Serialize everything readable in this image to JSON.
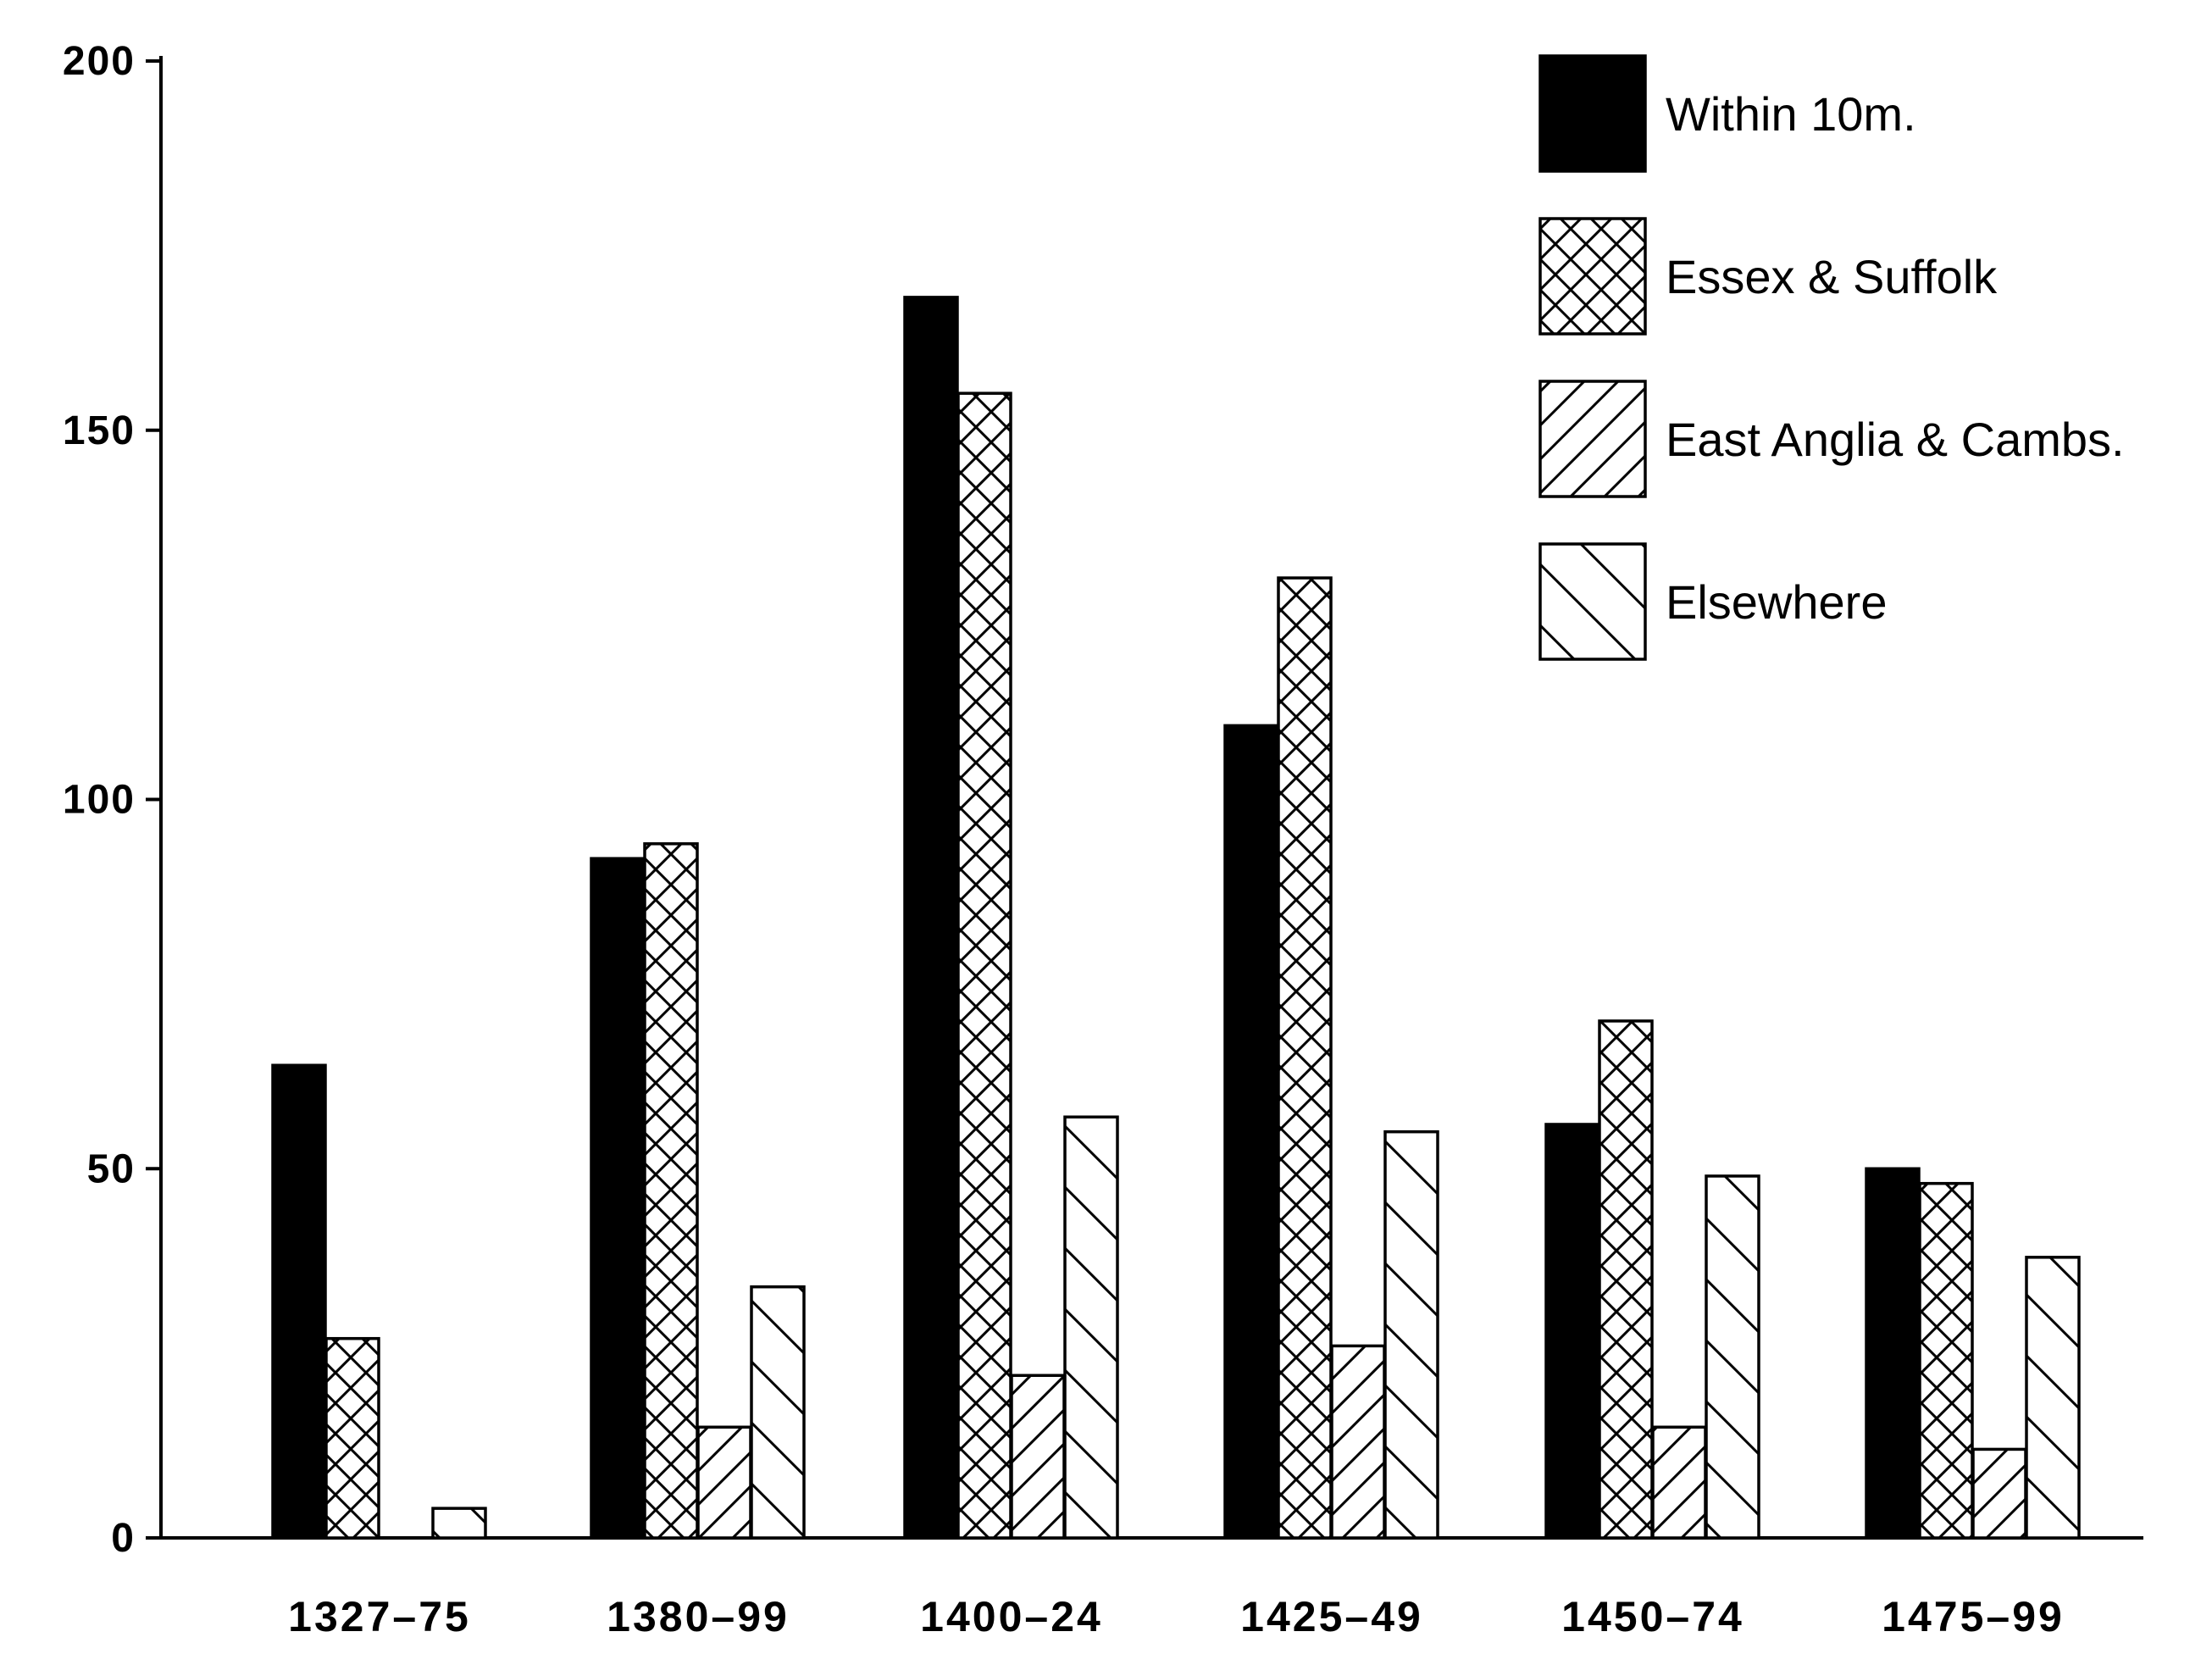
{
  "chart_data": {
    "type": "bar",
    "categories": [
      "1327-75",
      "1380-99",
      "1400-24",
      "1425-49",
      "1450-74",
      "1475-99"
    ],
    "series": [
      {
        "name": "Within 10m.",
        "values": [
          64,
          92,
          168,
          110,
          56,
          50
        ],
        "pattern": "solid"
      },
      {
        "name": "Essex & Suffolk",
        "values": [
          27,
          94,
          155,
          130,
          70,
          48
        ],
        "pattern": "crosshatch"
      },
      {
        "name": "East Anglia & Cambs.",
        "values": [
          0,
          15,
          22,
          26,
          15,
          12
        ],
        "pattern": "diagonal-up"
      },
      {
        "name": "Elsewhere",
        "values": [
          4,
          34,
          57,
          55,
          49,
          38
        ],
        "pattern": "diagonal-down"
      }
    ],
    "title": "",
    "xlabel": "",
    "ylabel": "",
    "ylim": [
      0,
      200
    ],
    "yticks": [
      0,
      50,
      100,
      150,
      200
    ],
    "grid": false,
    "legend_position": "top-right",
    "colors": {
      "ink": "#000000",
      "paper": "#ffffff"
    }
  }
}
